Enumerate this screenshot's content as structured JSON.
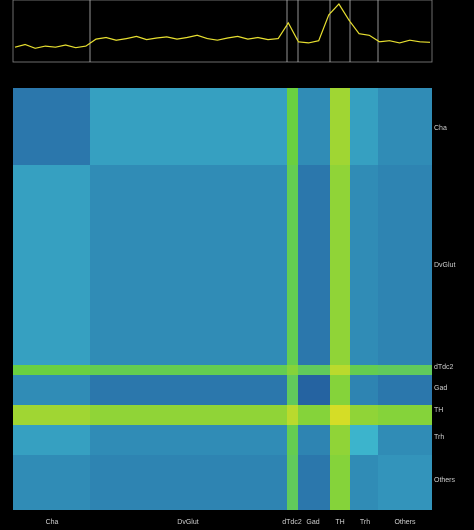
{
  "chart_data": [
    {
      "type": "line",
      "color": "#e8e030",
      "ylim": [
        0,
        1
      ],
      "values": [
        0.2,
        0.25,
        0.18,
        0.22,
        0.2,
        0.24,
        0.19,
        0.22,
        0.35,
        0.38,
        0.33,
        0.36,
        0.4,
        0.34,
        0.37,
        0.39,
        0.35,
        0.38,
        0.42,
        0.36,
        0.33,
        0.37,
        0.4,
        0.35,
        0.38,
        0.34,
        0.36,
        0.65,
        0.3,
        0.28,
        0.32,
        0.8,
        1,
        0.7,
        0.45,
        0.42,
        0.3,
        0.32,
        0.28,
        0.33,
        0.3,
        0.29
      ]
    },
    {
      "type": "heatmap",
      "categories": [
        "Cha",
        "DvGlut",
        "dTdc2",
        "Gad",
        "TH",
        "Trh",
        "Others"
      ],
      "colormap": [
        "#07112a",
        "#1f4f96",
        "#3cb4cc",
        "#6ad040",
        "#f0e020"
      ],
      "values": [
        [
          0.35,
          0.45,
          0.75,
          0.4,
          0.85,
          0.45,
          0.4
        ],
        [
          0.45,
          0.4,
          0.72,
          0.35,
          0.82,
          0.4,
          0.38
        ],
        [
          0.75,
          0.72,
          0.8,
          0.7,
          0.9,
          0.72,
          0.7
        ],
        [
          0.4,
          0.35,
          0.7,
          0.3,
          0.8,
          0.38,
          0.35
        ],
        [
          0.85,
          0.82,
          0.9,
          0.8,
          0.95,
          0.82,
          0.8
        ],
        [
          0.45,
          0.4,
          0.72,
          0.38,
          0.82,
          0.5,
          0.4
        ],
        [
          0.4,
          0.38,
          0.7,
          0.35,
          0.8,
          0.4,
          0.42
        ]
      ]
    }
  ]
}
